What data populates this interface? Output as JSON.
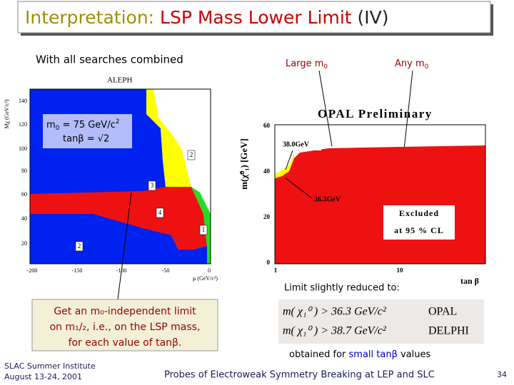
{
  "title": {
    "part1": "Interpretation:",
    "part2": "LSP Mass Lower Limit",
    "part3": "(IV)"
  },
  "subtitle": "With all searches combined",
  "callouts": {
    "large": {
      "text": "Large m",
      "sub": "0"
    },
    "any": {
      "text": "Any m",
      "sub": "0"
    }
  },
  "aleph": {
    "label": "ALEPH",
    "y_label": "Mχ (GeV/c²)",
    "x_label": "μ (GeV/c²)",
    "y_ticks": [
      "140",
      "120",
      "100",
      "80",
      "60",
      "40",
      "20"
    ],
    "x_ticks": [
      "-200",
      "-150",
      "-100",
      "-50",
      "0"
    ],
    "regions": [
      "2",
      "3",
      "4",
      "1",
      "2"
    ],
    "annotation": {
      "m": "m",
      "sub": "0",
      "rest": " = 75 GeV/c",
      "sup": "2",
      "tan": "tanβ = √2"
    }
  },
  "opal": {
    "label": "OPAL Preliminary",
    "y_label": "m(χ̃⁰₁) [GeV]",
    "x_label": "tan β",
    "y_ticks": [
      "60",
      "40",
      "20",
      "0"
    ],
    "x_ticks": [
      "1",
      "10"
    ],
    "mark_high": "38.0GeV",
    "mark_low": "36.3GeV",
    "excluded": "Excluded",
    "cl": "at 95 % CL"
  },
  "limit_note": "Limit slightly reduced to:",
  "formulas": [
    {
      "lhs": "m( χ₁⁰ ) > 36.3 GeV/c²",
      "exp": "OPAL"
    },
    {
      "lhs": "m( χ₁⁰ ) > 38.7 GeV/c²",
      "exp": "DELPHI"
    }
  ],
  "obtained": {
    "pre": "obtained for ",
    "hl": "small tanβ",
    "post": " values"
  },
  "box": {
    "line1": "Get an m₀-independent limit",
    "line2": "on m₁/₂, i.e., on the LSP mass,",
    "line3": "for each value of tanβ."
  },
  "footer": {
    "inst": "SLAC Summer Institute",
    "date": "August 13-24, 2001",
    "talk": "Probes of Electroweak Symmetry Breaking at LEP and SLC",
    "page": "34"
  }
}
